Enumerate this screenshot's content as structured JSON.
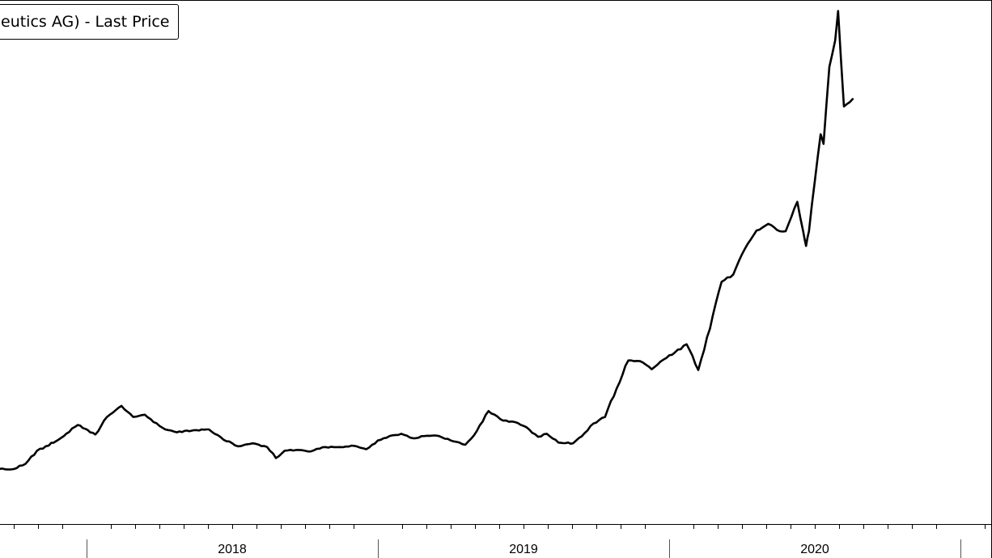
{
  "legend": {
    "label_prefix": "eutics AG)",
    "label_separator": "-",
    "label_series": "Last Price"
  },
  "chart_data": {
    "type": "line",
    "title": "",
    "xlabel": "",
    "ylabel": "",
    "legend_position": "top-left",
    "grid": false,
    "line_color": "#000000",
    "x_tick_labels": [
      "2018",
      "2019",
      "2020"
    ],
    "series": [
      {
        "name": "eutics AG) - Last Price",
        "x": [
          2017.51,
          2017.55,
          2017.6,
          2017.65,
          2017.7,
          2017.75,
          2017.79,
          2017.83,
          2017.87,
          2017.93,
          2017.97,
          2018.03,
          2018.07,
          2018.12,
          2018.16,
          2018.2,
          2018.23,
          2018.27,
          2018.31,
          2018.37,
          2018.42,
          2018.47,
          2018.52,
          2018.57,
          2018.62,
          2018.65,
          2018.68,
          2018.72,
          2018.77,
          2018.82,
          2018.87,
          2018.91,
          2018.96,
          2019.0,
          2019.04,
          2019.08,
          2019.12,
          2019.16,
          2019.21,
          2019.25,
          2019.3,
          2019.34,
          2019.38,
          2019.43,
          2019.47,
          2019.51,
          2019.55,
          2019.58,
          2019.62,
          2019.67,
          2019.71,
          2019.74,
          2019.78,
          2019.82,
          2019.86,
          2019.9,
          2019.94,
          2019.98,
          2020.02,
          2020.06,
          2020.1,
          2020.14,
          2020.18,
          2020.22,
          2020.26,
          2020.3,
          2020.34,
          2020.38,
          2020.4,
          2020.42,
          2020.44,
          2020.46,
          2020.47,
          2020.48,
          2020.5,
          2020.52,
          2020.53,
          2020.55,
          2020.57,
          2020.58,
          2020.6,
          2020.63
        ],
        "y": [
          9.5,
          9.6,
          9.6,
          9.5,
          9.6,
          9.6,
          10.3,
          12.1,
          12.8,
          14.4,
          15.6,
          14.3,
          16.7,
          18.2,
          16.7,
          17.0,
          16.0,
          15.0,
          14.6,
          14.9,
          15.0,
          13.6,
          12.7,
          13.1,
          12.6,
          11.1,
          12.1,
          12.2,
          12.0,
          12.6,
          12.6,
          12.8,
          12.3,
          13.5,
          14.1,
          14.4,
          13.8,
          14.1,
          14.1,
          13.5,
          12.9,
          14.8,
          17.5,
          16.2,
          16.0,
          15.3,
          14.0,
          14.4,
          13.2,
          13.1,
          14.5,
          15.8,
          16.7,
          20.6,
          24.4,
          24.3,
          23.2,
          24.5,
          25.5,
          26.6,
          23.1,
          28.7,
          35.1,
          36.1,
          39.6,
          42.1,
          43.0,
          42.0,
          42.0,
          44.0,
          46.0,
          42.0,
          40.0,
          42.0,
          48.8,
          55.2,
          53.9,
          64.4,
          68.0,
          72.0,
          59.0,
          60.0
        ]
      }
    ]
  }
}
